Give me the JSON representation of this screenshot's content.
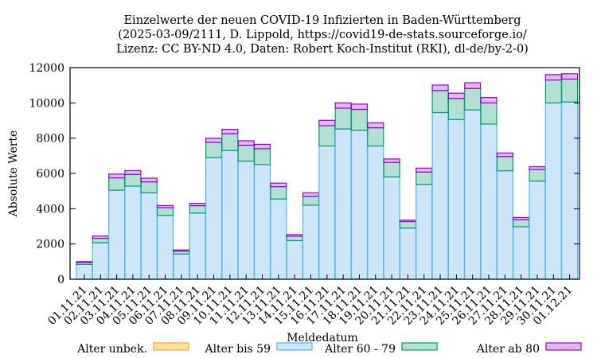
{
  "chart_data": {
    "type": "bar",
    "stacked": true,
    "title": [
      "Einzelwerte der neuen COVID-19 Infizierten in Baden-Württemberg",
      "(2025-03-09/2111, D. Lippold, https://covid19-de-stats.sourceforge.io/",
      "Lizenz: CC BY-ND 4.0, Daten: Robert Koch-Institut (RKI), dl-de/by-2-0)"
    ],
    "xlabel": "Meldedatum",
    "ylabel": "Absolute Werte",
    "ylim": [
      0,
      12000
    ],
    "yticks": [
      0,
      2000,
      4000,
      6000,
      8000,
      10000,
      12000
    ],
    "grid": false,
    "legend_position": "bottom",
    "categories": [
      "01.11.21",
      "02.11.21",
      "03.11.21",
      "04.11.21",
      "05.11.21",
      "06.11.21",
      "07.11.21",
      "08.11.21",
      "09.11.21",
      "10.11.21",
      "11.11.21",
      "12.11.21",
      "13.11.21",
      "14.11.21",
      "15.11.21",
      "16.11.21",
      "17.11.21",
      "18.11.21",
      "19.11.21",
      "20.11.21",
      "21.11.21",
      "22.11.21",
      "23.11.21",
      "24.11.21",
      "25.11.21",
      "26.11.21",
      "27.11.21",
      "28.11.21",
      "29.11.21",
      "30.11.21",
      "01.12.21"
    ],
    "series": [
      {
        "name": "Alter unbek.",
        "color": "#fde0a0",
        "stroke": "#f0a830",
        "values": [
          0,
          0,
          0,
          0,
          0,
          0,
          0,
          0,
          0,
          0,
          0,
          0,
          0,
          0,
          0,
          0,
          0,
          0,
          0,
          0,
          0,
          0,
          0,
          0,
          0,
          0,
          0,
          0,
          0,
          0,
          0
        ]
      },
      {
        "name": "Alter bis 59",
        "color": "#cce6f8",
        "stroke": "#56b4e9",
        "values": [
          840,
          2070,
          5050,
          5280,
          4900,
          3620,
          1430,
          3750,
          6900,
          7300,
          6700,
          6500,
          4550,
          2190,
          4200,
          7560,
          8520,
          8450,
          7560,
          5800,
          2900,
          5380,
          9450,
          9050,
          9600,
          8800,
          6150,
          2980,
          5570,
          10000,
          10050
        ]
      },
      {
        "name": "Alter 60 - 79",
        "color": "#b2e0d2",
        "stroke": "#009e73",
        "values": [
          110,
          250,
          700,
          660,
          620,
          440,
          170,
          420,
          860,
          950,
          900,
          900,
          700,
          250,
          500,
          1150,
          1180,
          1180,
          1030,
          820,
          370,
          700,
          1250,
          1200,
          1220,
          1200,
          810,
          400,
          650,
          1300,
          1300
        ]
      },
      {
        "name": "Alter ab 80",
        "color": "#e4b8ee",
        "stroke": "#9400d3",
        "values": [
          50,
          130,
          210,
          220,
          210,
          120,
          60,
          130,
          240,
          250,
          250,
          250,
          200,
          90,
          200,
          300,
          300,
          300,
          280,
          200,
          80,
          220,
          310,
          300,
          320,
          300,
          200,
          120,
          160,
          300,
          300
        ]
      }
    ]
  }
}
